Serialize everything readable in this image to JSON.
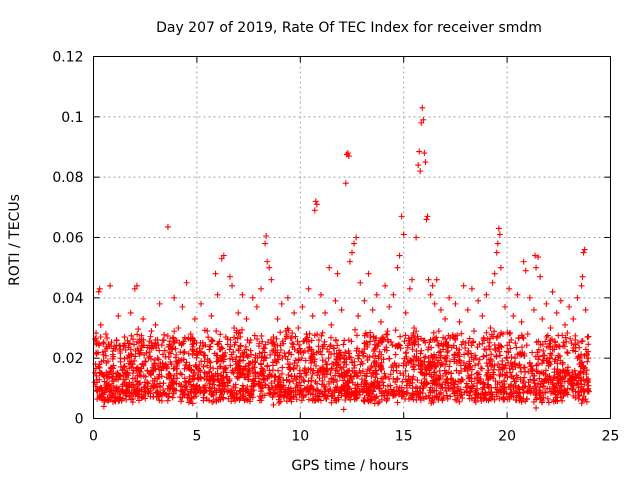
{
  "chart_data": {
    "type": "scatter",
    "title": "Day 207 of 2019, Rate Of TEC Index for receiver smdm",
    "xlabel": "GPS time / hours",
    "ylabel": "ROTI / TECUs",
    "xlim": [
      0,
      25
    ],
    "ylim": [
      0,
      0.12
    ],
    "x_ticks": [
      0,
      5,
      10,
      15,
      20,
      25
    ],
    "y_ticks": [
      0,
      0.02,
      0.04,
      0.06,
      0.08,
      0.1,
      0.12
    ],
    "x_tick_labels": [
      "0",
      "5",
      "10",
      "15",
      "20",
      "25"
    ],
    "y_tick_labels": [
      "0",
      "0.02",
      "0.04",
      "0.06",
      "0.08",
      "0.1",
      "0.12"
    ],
    "grid": true,
    "marker": "plus",
    "color": "#ff0000",
    "series": [
      {
        "name": "ROTI",
        "points": [
          [
            0.05,
            0.012
          ],
          [
            0.1,
            0.018
          ],
          [
            0.15,
            0.025
          ],
          [
            0.2,
            0.009
          ],
          [
            0.25,
            0.042
          ],
          [
            0.3,
            0.043
          ],
          [
            0.35,
            0.031
          ],
          [
            0.4,
            0.015
          ],
          [
            0.45,
            0.022
          ],
          [
            0.5,
            0.014
          ],
          [
            0.6,
            0.028
          ],
          [
            0.7,
            0.019
          ],
          [
            0.8,
            0.044
          ],
          [
            0.9,
            0.017
          ],
          [
            1.0,
            0.024
          ],
          [
            1.1,
            0.013
          ],
          [
            1.2,
            0.034
          ],
          [
            1.3,
            0.02
          ],
          [
            1.4,
            0.016
          ],
          [
            1.5,
            0.027
          ],
          [
            1.6,
            0.011
          ],
          [
            1.7,
            0.021
          ],
          [
            1.8,
            0.035
          ],
          [
            1.9,
            0.018
          ],
          [
            2.0,
            0.043
          ],
          [
            2.1,
            0.044
          ],
          [
            2.2,
            0.025
          ],
          [
            2.3,
            0.014
          ],
          [
            2.4,
            0.033
          ],
          [
            2.5,
            0.019
          ],
          [
            2.6,
            0.012
          ],
          [
            2.7,
            0.022
          ],
          [
            2.8,
            0.029
          ],
          [
            2.9,
            0.016
          ],
          [
            3.0,
            0.031
          ],
          [
            3.1,
            0.02
          ],
          [
            3.2,
            0.038
          ],
          [
            3.3,
            0.014
          ],
          [
            3.4,
            0.026
          ],
          [
            3.5,
            0.018
          ],
          [
            3.6,
            0.0635
          ],
          [
            3.7,
            0.024
          ],
          [
            3.8,
            0.012
          ],
          [
            3.9,
            0.04
          ],
          [
            4.0,
            0.019
          ],
          [
            4.1,
            0.03
          ],
          [
            4.2,
            0.015
          ],
          [
            4.3,
            0.037
          ],
          [
            4.4,
            0.022
          ],
          [
            4.5,
            0.045
          ],
          [
            4.6,
            0.017
          ],
          [
            4.7,
            0.028
          ],
          [
            4.8,
            0.013
          ],
          [
            4.9,
            0.033
          ],
          [
            5.0,
            0.021
          ],
          [
            5.1,
            0.016
          ],
          [
            5.2,
            0.038
          ],
          [
            5.3,
            0.024
          ],
          [
            5.4,
            0.011
          ],
          [
            5.5,
            0.029
          ],
          [
            5.6,
            0.019
          ],
          [
            5.7,
            0.034
          ],
          [
            5.8,
            0.014
          ],
          [
            5.9,
            0.048
          ],
          [
            6.0,
            0.041
          ],
          [
            6.1,
            0.023
          ],
          [
            6.2,
            0.053
          ],
          [
            6.3,
            0.054
          ],
          [
            6.4,
            0.027
          ],
          [
            6.5,
            0.012
          ],
          [
            6.6,
            0.047
          ],
          [
            6.7,
            0.044
          ],
          [
            6.8,
            0.03
          ],
          [
            6.9,
            0.018
          ],
          [
            7.0,
            0.035
          ],
          [
            7.1,
            0.015
          ],
          [
            7.2,
            0.041
          ],
          [
            7.3,
            0.022
          ],
          [
            7.4,
            0.033
          ],
          [
            7.5,
            0.013
          ],
          [
            7.6,
            0.026
          ],
          [
            7.7,
            0.04
          ],
          [
            7.8,
            0.019
          ],
          [
            7.9,
            0.037
          ],
          [
            8.0,
            0.024
          ],
          [
            8.1,
            0.043
          ],
          [
            8.2,
            0.016
          ],
          [
            8.3,
            0.058
          ],
          [
            8.35,
            0.0605
          ],
          [
            8.4,
            0.052
          ],
          [
            8.5,
            0.05
          ],
          [
            8.6,
            0.046
          ],
          [
            8.7,
            0.027
          ],
          [
            8.8,
            0.014
          ],
          [
            8.9,
            0.033
          ],
          [
            9.0,
            0.021
          ],
          [
            9.1,
            0.038
          ],
          [
            9.2,
            0.011
          ],
          [
            9.3,
            0.029
          ],
          [
            9.4,
            0.04
          ],
          [
            9.5,
            0.018
          ],
          [
            9.6,
            0.025
          ],
          [
            9.7,
            0.035
          ],
          [
            9.8,
            0.013
          ],
          [
            9.9,
            0.03
          ],
          [
            10.0,
            0.022
          ],
          [
            10.1,
            0.037
          ],
          [
            10.2,
            0.016
          ],
          [
            10.3,
            0.028
          ],
          [
            10.4,
            0.043
          ],
          [
            10.5,
            0.02
          ],
          [
            10.6,
            0.034
          ],
          [
            10.7,
            0.069
          ],
          [
            10.75,
            0.072
          ],
          [
            10.8,
            0.071
          ],
          [
            10.9,
            0.026
          ],
          [
            11.0,
            0.041
          ],
          [
            11.1,
            0.015
          ],
          [
            11.2,
            0.035
          ],
          [
            11.3,
            0.023
          ],
          [
            11.4,
            0.05
          ],
          [
            11.5,
            0.031
          ],
          [
            11.6,
            0.012
          ],
          [
            11.7,
            0.039
          ],
          [
            11.8,
            0.048
          ],
          [
            11.9,
            0.021
          ],
          [
            12.0,
            0.036
          ],
          [
            12.1,
            0.017
          ],
          [
            12.2,
            0.078
          ],
          [
            12.25,
            0.0875
          ],
          [
            12.3,
            0.088
          ],
          [
            12.35,
            0.087
          ],
          [
            12.4,
            0.052
          ],
          [
            12.5,
            0.055
          ],
          [
            12.6,
            0.058
          ],
          [
            12.7,
            0.06
          ],
          [
            12.8,
            0.034
          ],
          [
            12.9,
            0.045
          ],
          [
            13.0,
            0.022
          ],
          [
            13.1,
            0.039
          ],
          [
            13.2,
            0.014
          ],
          [
            13.3,
            0.048
          ],
          [
            13.4,
            0.027
          ],
          [
            13.5,
            0.036
          ],
          [
            13.6,
            0.019
          ],
          [
            13.7,
            0.041
          ],
          [
            13.8,
            0.025
          ],
          [
            13.9,
            0.032
          ],
          [
            14.0,
            0.012
          ],
          [
            14.1,
            0.044
          ],
          [
            14.2,
            0.028
          ],
          [
            14.3,
            0.037
          ],
          [
            14.4,
            0.017
          ],
          [
            14.5,
            0.041
          ],
          [
            14.6,
            0.024
          ],
          [
            14.7,
            0.05
          ],
          [
            14.8,
            0.054
          ],
          [
            14.9,
            0.067
          ],
          [
            15.0,
            0.061
          ],
          [
            15.1,
            0.035
          ],
          [
            15.2,
            0.019
          ],
          [
            15.3,
            0.043
          ],
          [
            15.4,
            0.046
          ],
          [
            15.5,
            0.03
          ],
          [
            15.6,
            0.06
          ],
          [
            15.7,
            0.084
          ],
          [
            15.75,
            0.0885
          ],
          [
            15.8,
            0.082
          ],
          [
            15.85,
            0.098
          ],
          [
            15.9,
            0.103
          ],
          [
            15.95,
            0.099
          ],
          [
            16.0,
            0.088
          ],
          [
            16.05,
            0.085
          ],
          [
            16.1,
            0.066
          ],
          [
            16.15,
            0.067
          ],
          [
            16.2,
            0.046
          ],
          [
            16.3,
            0.041
          ],
          [
            16.4,
            0.044
          ],
          [
            16.5,
            0.038
          ],
          [
            16.6,
            0.046
          ],
          [
            16.7,
            0.029
          ],
          [
            16.8,
            0.036
          ],
          [
            16.9,
            0.018
          ],
          [
            17.0,
            0.033
          ],
          [
            17.1,
            0.022
          ],
          [
            17.2,
            0.04
          ],
          [
            17.3,
            0.015
          ],
          [
            17.4,
            0.027
          ],
          [
            17.5,
            0.038
          ],
          [
            17.6,
            0.021
          ],
          [
            17.7,
            0.032
          ],
          [
            17.8,
            0.013
          ],
          [
            17.9,
            0.044
          ],
          [
            18.0,
            0.025
          ],
          [
            18.1,
            0.036
          ],
          [
            18.2,
            0.017
          ],
          [
            18.3,
            0.043
          ],
          [
            18.4,
            0.029
          ],
          [
            18.5,
            0.02
          ],
          [
            18.6,
            0.039
          ],
          [
            18.7,
            0.012
          ],
          [
            18.8,
            0.034
          ],
          [
            18.9,
            0.023
          ],
          [
            19.0,
            0.041
          ],
          [
            19.1,
            0.016
          ],
          [
            19.2,
            0.03
          ],
          [
            19.3,
            0.045
          ],
          [
            19.4,
            0.048
          ],
          [
            19.5,
            0.055
          ],
          [
            19.55,
            0.058
          ],
          [
            19.6,
            0.063
          ],
          [
            19.65,
            0.061
          ],
          [
            19.7,
            0.05
          ],
          [
            19.8,
            0.028
          ],
          [
            19.9,
            0.037
          ],
          [
            20.0,
            0.02
          ],
          [
            20.1,
            0.043
          ],
          [
            20.2,
            0.014
          ],
          [
            20.3,
            0.034
          ],
          [
            20.4,
            0.025
          ],
          [
            20.5,
            0.041
          ],
          [
            20.6,
            0.018
          ],
          [
            20.7,
            0.032
          ],
          [
            20.8,
            0.052
          ],
          [
            20.9,
            0.049
          ],
          [
            21.0,
            0.028
          ],
          [
            21.1,
            0.04
          ],
          [
            21.2,
            0.015
          ],
          [
            21.3,
            0.036
          ],
          [
            21.35,
            0.054
          ],
          [
            21.4,
            0.05
          ],
          [
            21.5,
            0.0535
          ],
          [
            21.6,
            0.047
          ],
          [
            21.7,
            0.033
          ],
          [
            21.8,
            0.021
          ],
          [
            21.9,
            0.038
          ],
          [
            22.0,
            0.012
          ],
          [
            22.1,
            0.03
          ],
          [
            22.2,
            0.042
          ],
          [
            22.3,
            0.019
          ],
          [
            22.4,
            0.035
          ],
          [
            22.5,
            0.024
          ],
          [
            22.6,
            0.039
          ],
          [
            22.7,
            0.016
          ],
          [
            22.8,
            0.031
          ],
          [
            22.9,
            0.022
          ],
          [
            23.0,
            0.037
          ],
          [
            23.1,
            0.013
          ],
          [
            23.2,
            0.033
          ],
          [
            23.3,
            0.026
          ],
          [
            23.4,
            0.04
          ],
          [
            23.5,
            0.018
          ],
          [
            23.6,
            0.044
          ],
          [
            23.65,
            0.047
          ],
          [
            23.7,
            0.055
          ],
          [
            23.75,
            0.056
          ],
          [
            23.8,
            0.036
          ],
          [
            23.85,
            0.021
          ],
          [
            23.9,
            0.012
          ],
          [
            23.95,
            0.009
          ],
          [
            0.5,
            0.004
          ],
          [
            2.2,
            0.006
          ],
          [
            4.8,
            0.005
          ],
          [
            7.3,
            0.006
          ],
          [
            8.7,
            0.0045
          ],
          [
            11.0,
            0.006
          ],
          [
            12.1,
            0.003
          ],
          [
            13.6,
            0.005
          ],
          [
            16.6,
            0.007
          ],
          [
            19.1,
            0.006
          ],
          [
            21.4,
            0.0035
          ],
          [
            22.6,
            0.007
          ],
          [
            1.3,
            0.007
          ],
          [
            3.5,
            0.008
          ],
          [
            6.1,
            0.007
          ],
          [
            9.5,
            0.0065
          ],
          [
            14.2,
            0.0075
          ],
          [
            17.8,
            0.008
          ],
          [
            20.7,
            0.0055
          ],
          [
            23.2,
            0.0075
          ]
        ]
      }
    ],
    "density_band": {
      "description": "dense base cloud of points",
      "typical_min": 0.007,
      "typical_max": 0.028
    }
  }
}
